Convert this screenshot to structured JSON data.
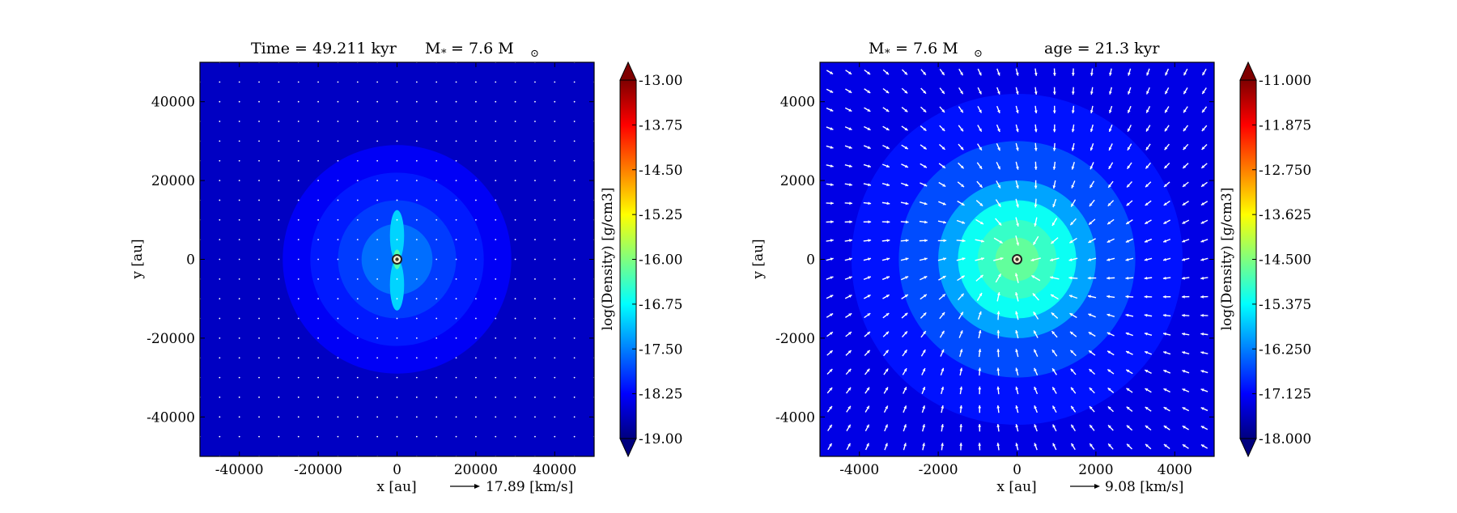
{
  "chart_data": [
    {
      "type": "heatmap",
      "title_parts": [
        "Time = 49.211 kyr",
        "M",
        "*",
        "= 7.6 M",
        "⊙"
      ],
      "xlabel": "x [au]",
      "ylabel": "y [au]",
      "xlim": [
        -50000,
        50000
      ],
      "ylim": [
        -50000,
        50000
      ],
      "xticks": [
        -40000,
        -20000,
        0,
        20000,
        40000
      ],
      "yticks": [
        40000,
        20000,
        0,
        -20000,
        -40000
      ],
      "xtick_labels": [
        "-40000",
        "-20000",
        "0",
        "20000",
        "40000"
      ],
      "ytick_labels": [
        "40000",
        "20000",
        "0",
        "-20000",
        "-40000"
      ],
      "colorbar": {
        "label": "log(Density) [g/cm3]",
        "range": [
          -19.0,
          -13.0
        ],
        "ticks": [
          -13.0,
          -13.75,
          -14.5,
          -15.25,
          -16.0,
          -16.75,
          -17.5,
          -18.25,
          -19.0
        ],
        "tick_labels": [
          "-13.00",
          "-13.75",
          "-14.50",
          "-15.25",
          "-16.00",
          "-16.75",
          "-17.50",
          "-18.25",
          "-19.00"
        ],
        "extend": "both"
      },
      "background_value": -18.6,
      "structures": [
        {
          "x": 0,
          "y": 0,
          "r": 29000,
          "value": -18.3
        },
        {
          "x": 0,
          "y": 0,
          "r": 22000,
          "value": -18.1
        },
        {
          "x": 0,
          "y": 0,
          "r": 15000,
          "value": -17.9
        },
        {
          "x": 0,
          "y": 0,
          "r": 9000,
          "value": -17.6
        }
      ],
      "outflow": [
        {
          "x": 0,
          "y": 6000,
          "rx": 1800,
          "ry": 6500,
          "value": -17.0
        },
        {
          "x": 0,
          "y": -6500,
          "rx": 1800,
          "ry": 6500,
          "value": -17.0
        },
        {
          "x": 0,
          "y": 0,
          "rx": 900,
          "ry": 2500,
          "value": -16.3
        }
      ],
      "sink": {
        "x": 0,
        "y": 0
      },
      "quiver": {
        "spacing": 5000,
        "style": "dots"
      },
      "velocity_key": {
        "label": "17.89 [km/s]"
      }
    },
    {
      "type": "heatmap",
      "title_parts": [
        "M",
        "*",
        "= 7.6 M",
        "⊙",
        "age = 21.3 kyr"
      ],
      "xlabel": "x [au]",
      "ylabel": "y [au]",
      "xlim": [
        -5000,
        5000
      ],
      "ylim": [
        -5000,
        5000
      ],
      "xticks": [
        -4000,
        -2000,
        0,
        2000,
        4000
      ],
      "yticks": [
        4000,
        2000,
        0,
        -2000,
        -4000
      ],
      "xtick_labels": [
        "-4000",
        "-2000",
        "0",
        "2000",
        "4000"
      ],
      "ytick_labels": [
        "4000",
        "2000",
        "0",
        "-2000",
        "-4000"
      ],
      "colorbar": {
        "label": "log(Density) [g/cm3]",
        "range": [
          -18.0,
          -11.0
        ],
        "ticks": [
          -11.0,
          -11.875,
          -12.75,
          -13.625,
          -14.5,
          -15.375,
          -16.25,
          -17.125,
          -18.0
        ],
        "tick_labels": [
          "-11.000",
          "-11.875",
          "-12.750",
          "-13.625",
          "-14.500",
          "-15.375",
          "-16.250",
          "-17.125",
          "-18.000"
        ],
        "extend": "both"
      },
      "background_value": -17.3,
      "structures": [
        {
          "x": 0,
          "y": 0,
          "r": 4200,
          "value": -17.0
        },
        {
          "x": 0,
          "y": 0,
          "r": 3000,
          "value": -16.6
        },
        {
          "x": 0,
          "y": 0,
          "r": 2000,
          "value": -16.0
        },
        {
          "x": 0,
          "y": 0,
          "r": 1500,
          "value": -15.3
        },
        {
          "x": 0,
          "y": 0,
          "r": 1000,
          "value": -15.0
        },
        {
          "x": 0,
          "y": 0,
          "r": 550,
          "value": -14.7
        }
      ],
      "outflow": [],
      "sink": {
        "x": 0,
        "y": 0
      },
      "quiver": {
        "spacing": 475,
        "style": "arrows",
        "pattern": "infall"
      },
      "velocity_key": {
        "label": "9.08 [km/s]"
      }
    }
  ],
  "colors": {
    "jet": [
      "#00007f",
      "#0000ff",
      "#007fff",
      "#00ffff",
      "#7fff7f",
      "#ffff00",
      "#ff7f00",
      "#ff0000",
      "#7f0000"
    ],
    "quiver": "#ffffff",
    "sink_fill": "#f5f0d0",
    "sink_ring": "#222222"
  }
}
